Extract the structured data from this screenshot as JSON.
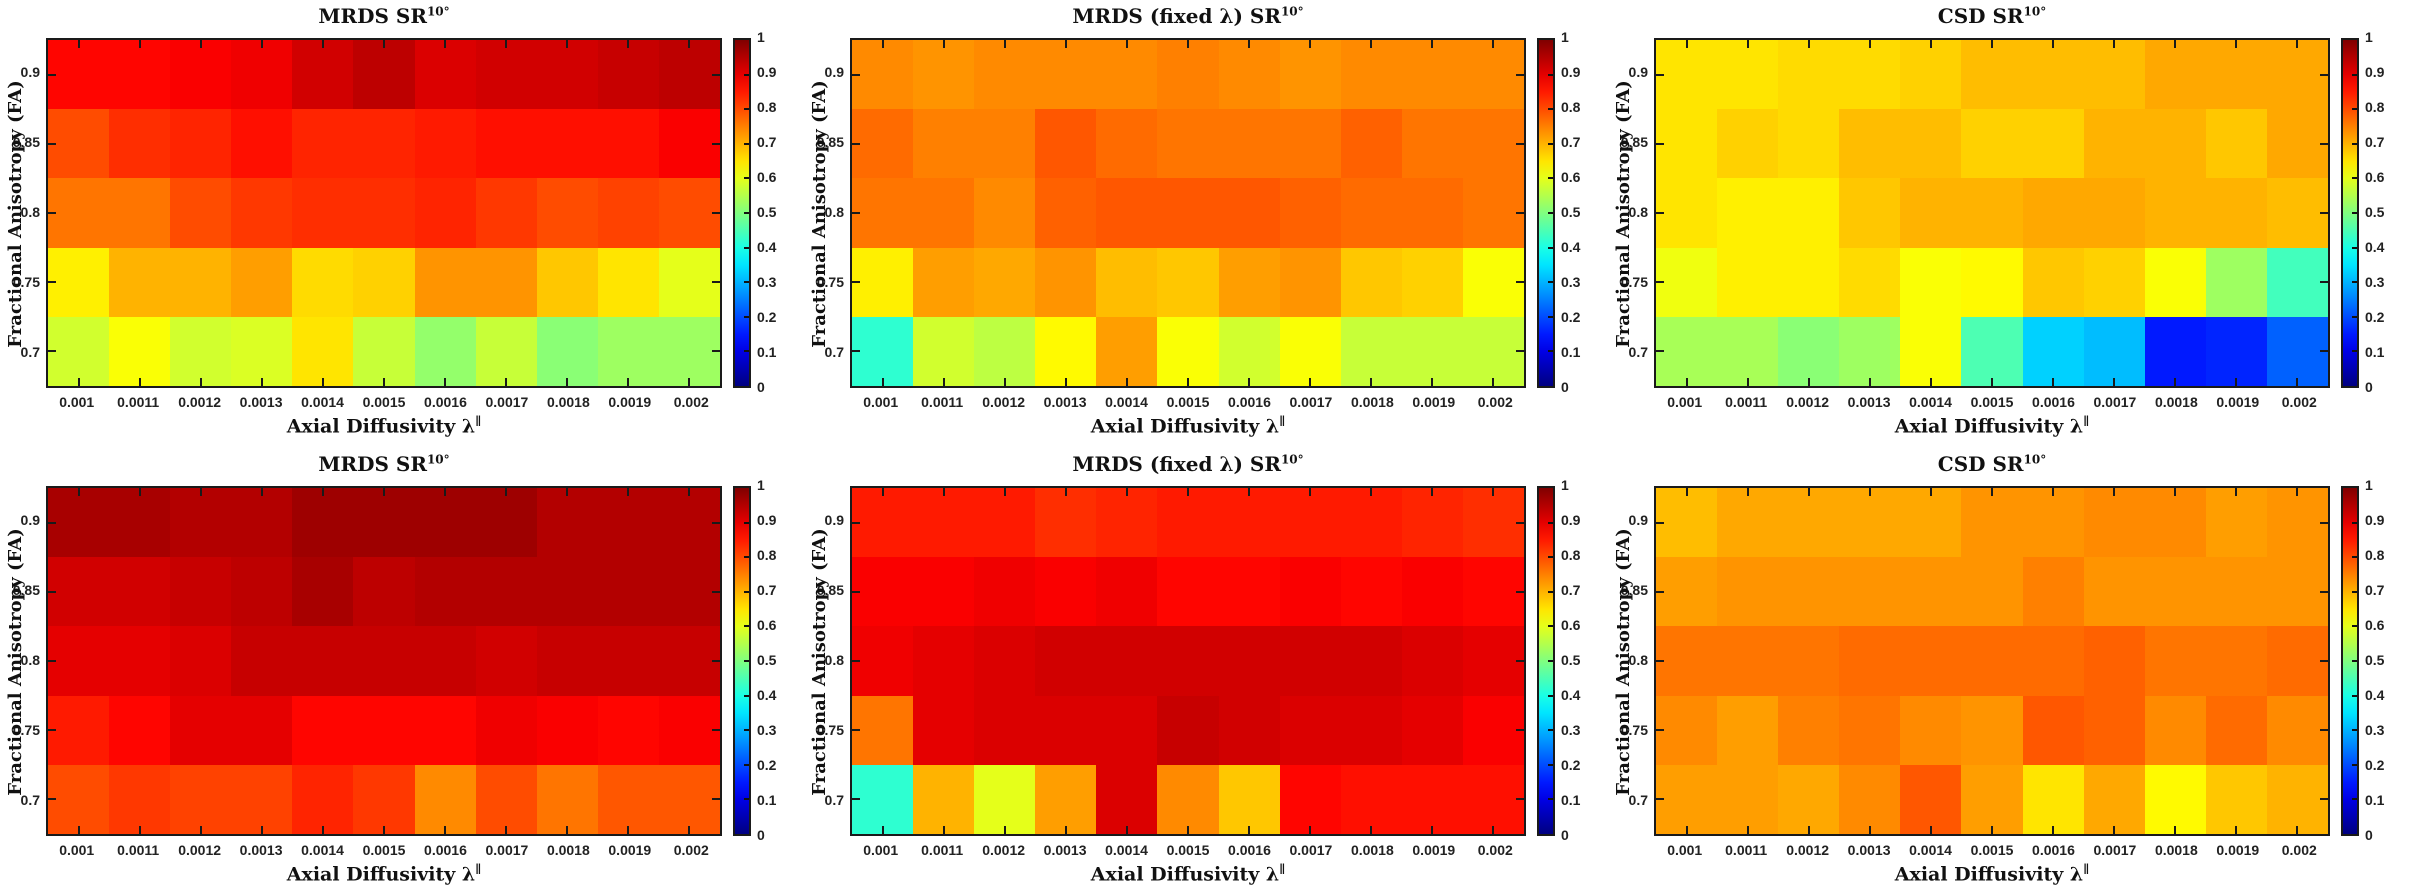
{
  "figure": {
    "background": "#ffffff",
    "description_visible_text_only": true,
    "colorbar": {
      "min": 0,
      "max": 1,
      "tick_labels": [
        "1",
        "0.9",
        "0.8",
        "0.7",
        "0.6",
        "0.5",
        "0.4",
        "0.3",
        "0.2",
        "0.1",
        "0"
      ]
    }
  },
  "chart_data": {
    "type": "heatmap",
    "layout": {
      "rows": 2,
      "cols": 3,
      "colormap": "jet",
      "zlim": [
        0,
        1
      ],
      "colorbar_position": "right-of-each-panel",
      "grid": false
    },
    "x": [
      0.001,
      0.0011,
      0.0012,
      0.0013,
      0.0014,
      0.0015,
      0.0016,
      0.0017,
      0.0018,
      0.0019,
      0.002
    ],
    "x_tick_labels": [
      "0.001",
      "0.0011",
      "0.0012",
      "0.0013",
      "0.0014",
      "0.0015",
      "0.0016",
      "0.0017",
      "0.0018",
      "0.0019",
      "0.002"
    ],
    "y": [
      0.9,
      0.85,
      0.8,
      0.75,
      0.7
    ],
    "y_tick_labels": [
      "0.9",
      "0.85",
      "0.8",
      "0.75",
      "0.7"
    ],
    "xlabel": {
      "text": "Axial Diffusivity λ",
      "sup": "∥"
    },
    "ylabel": "Fractional Anisotropy (FA)",
    "panels": [
      {
        "position": "top-left",
        "title": {
          "text": "MRDS SR",
          "sup": "10°"
        },
        "rows_top_to_bottom_FA": [
          0.9,
          0.85,
          0.8,
          0.75,
          0.7
        ],
        "values": [
          [
            0.87,
            0.87,
            0.88,
            0.89,
            0.92,
            0.94,
            0.91,
            0.92,
            0.92,
            0.93,
            0.94
          ],
          [
            0.8,
            0.83,
            0.84,
            0.86,
            0.84,
            0.84,
            0.85,
            0.86,
            0.86,
            0.86,
            0.88
          ],
          [
            0.76,
            0.76,
            0.8,
            0.82,
            0.83,
            0.83,
            0.84,
            0.82,
            0.8,
            0.81,
            0.8
          ],
          [
            0.64,
            0.7,
            0.7,
            0.72,
            0.66,
            0.67,
            0.73,
            0.73,
            0.68,
            0.65,
            0.6
          ],
          [
            0.58,
            0.62,
            0.58,
            0.59,
            0.65,
            0.57,
            0.52,
            0.57,
            0.51,
            0.53,
            0.53
          ]
        ]
      },
      {
        "position": "top-middle",
        "title": {
          "text": "MRDS (fixed λ) SR",
          "sup": "10°"
        },
        "rows_top_to_bottom_FA": [
          0.9,
          0.85,
          0.8,
          0.75,
          0.7
        ],
        "values": [
          [
            0.74,
            0.73,
            0.74,
            0.74,
            0.74,
            0.75,
            0.74,
            0.73,
            0.74,
            0.74,
            0.74
          ],
          [
            0.77,
            0.75,
            0.75,
            0.79,
            0.77,
            0.76,
            0.76,
            0.76,
            0.78,
            0.76,
            0.76
          ],
          [
            0.76,
            0.76,
            0.74,
            0.78,
            0.79,
            0.79,
            0.79,
            0.78,
            0.77,
            0.77,
            0.76
          ],
          [
            0.64,
            0.72,
            0.71,
            0.73,
            0.69,
            0.68,
            0.72,
            0.73,
            0.68,
            0.67,
            0.62
          ],
          [
            0.42,
            0.58,
            0.56,
            0.63,
            0.72,
            0.62,
            0.58,
            0.62,
            0.57,
            0.57,
            0.57
          ]
        ]
      },
      {
        "position": "top-right",
        "title": {
          "text": "CSD SR",
          "sup": "10°"
        },
        "rows_top_to_bottom_FA": [
          0.9,
          0.85,
          0.8,
          0.75,
          0.7
        ],
        "values": [
          [
            0.65,
            0.65,
            0.66,
            0.66,
            0.67,
            0.69,
            0.69,
            0.69,
            0.71,
            0.71,
            0.71
          ],
          [
            0.65,
            0.67,
            0.66,
            0.69,
            0.69,
            0.67,
            0.67,
            0.7,
            0.7,
            0.68,
            0.71
          ],
          [
            0.65,
            0.64,
            0.64,
            0.68,
            0.7,
            0.7,
            0.71,
            0.71,
            0.7,
            0.7,
            0.69
          ],
          [
            0.61,
            0.64,
            0.64,
            0.66,
            0.62,
            0.63,
            0.68,
            0.67,
            0.62,
            0.53,
            0.44
          ],
          [
            0.54,
            0.54,
            0.51,
            0.53,
            0.62,
            0.45,
            0.33,
            0.31,
            0.15,
            0.16,
            0.22
          ]
        ]
      },
      {
        "position": "bottom-left",
        "title": {
          "text": "MRDS SR",
          "sup": "10°"
        },
        "rows_top_to_bottom_FA": [
          0.9,
          0.85,
          0.8,
          0.75,
          0.7
        ],
        "values": [
          [
            0.96,
            0.96,
            0.95,
            0.95,
            0.97,
            0.97,
            0.97,
            0.97,
            0.95,
            0.95,
            0.95
          ],
          [
            0.92,
            0.92,
            0.93,
            0.94,
            0.96,
            0.94,
            0.95,
            0.95,
            0.95,
            0.95,
            0.95
          ],
          [
            0.9,
            0.9,
            0.91,
            0.93,
            0.93,
            0.93,
            0.93,
            0.92,
            0.93,
            0.93,
            0.93
          ],
          [
            0.85,
            0.87,
            0.9,
            0.9,
            0.87,
            0.87,
            0.87,
            0.89,
            0.88,
            0.87,
            0.88
          ],
          [
            0.8,
            0.82,
            0.81,
            0.81,
            0.84,
            0.82,
            0.74,
            0.8,
            0.76,
            0.79,
            0.79
          ]
        ]
      },
      {
        "position": "bottom-middle",
        "title": {
          "text": "MRDS (fixed λ) SR",
          "sup": "10°"
        },
        "rows_top_to_bottom_FA": [
          0.9,
          0.85,
          0.8,
          0.75,
          0.7
        ],
        "values": [
          [
            0.85,
            0.85,
            0.85,
            0.83,
            0.84,
            0.85,
            0.85,
            0.85,
            0.85,
            0.84,
            0.83
          ],
          [
            0.88,
            0.88,
            0.89,
            0.88,
            0.89,
            0.87,
            0.87,
            0.88,
            0.87,
            0.88,
            0.87
          ],
          [
            0.89,
            0.9,
            0.91,
            0.92,
            0.92,
            0.92,
            0.92,
            0.92,
            0.92,
            0.91,
            0.9
          ],
          [
            0.76,
            0.9,
            0.91,
            0.91,
            0.91,
            0.93,
            0.92,
            0.91,
            0.91,
            0.9,
            0.88
          ],
          [
            0.42,
            0.7,
            0.6,
            0.72,
            0.91,
            0.74,
            0.68,
            0.87,
            0.86,
            0.86,
            0.86
          ]
        ]
      },
      {
        "position": "bottom-right",
        "title": {
          "text": "CSD SR",
          "sup": "10°"
        },
        "rows_top_to_bottom_FA": [
          0.9,
          0.85,
          0.8,
          0.75,
          0.7
        ],
        "values": [
          [
            0.69,
            0.71,
            0.71,
            0.71,
            0.71,
            0.73,
            0.73,
            0.74,
            0.74,
            0.72,
            0.73
          ],
          [
            0.72,
            0.73,
            0.73,
            0.73,
            0.73,
            0.73,
            0.75,
            0.73,
            0.73,
            0.73,
            0.73
          ],
          [
            0.76,
            0.76,
            0.76,
            0.77,
            0.77,
            0.77,
            0.77,
            0.78,
            0.76,
            0.76,
            0.77
          ],
          [
            0.74,
            0.72,
            0.75,
            0.76,
            0.74,
            0.73,
            0.79,
            0.78,
            0.74,
            0.77,
            0.74
          ],
          [
            0.72,
            0.72,
            0.71,
            0.74,
            0.79,
            0.72,
            0.65,
            0.71,
            0.63,
            0.68,
            0.7
          ]
        ]
      }
    ]
  }
}
